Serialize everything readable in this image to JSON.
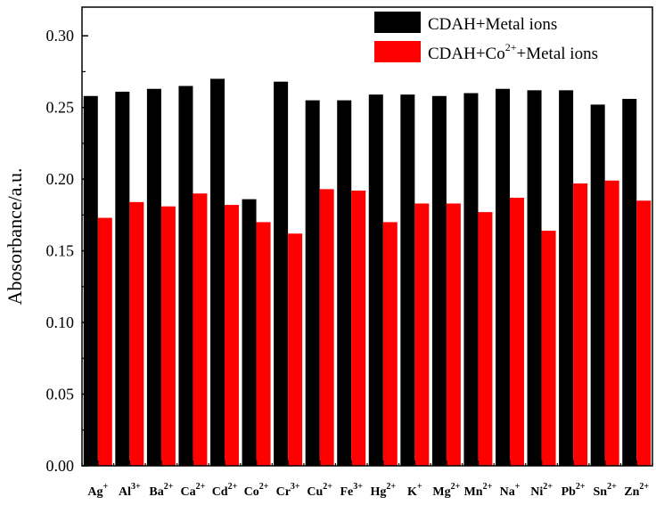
{
  "chart_data": {
    "type": "bar",
    "title": "",
    "xlabel": "",
    "ylabel": "Abosorbance/a.u.",
    "ylim": [
      0,
      0.32
    ],
    "yticks": [
      "0.00",
      "0.05",
      "0.10",
      "0.15",
      "0.20",
      "0.25",
      "0.30"
    ],
    "ytick_values": [
      0,
      0.05,
      0.1,
      0.15,
      0.2,
      0.25,
      0.3
    ],
    "legend_position": "top-right",
    "categories": [
      {
        "base": "Ag",
        "sup": "+"
      },
      {
        "base": "Al",
        "sup": "3+"
      },
      {
        "base": "Ba",
        "sup": "2+"
      },
      {
        "base": "Ca",
        "sup": "2+"
      },
      {
        "base": "Cd",
        "sup": "2+"
      },
      {
        "base": "Co",
        "sup": "2+"
      },
      {
        "base": "Cr",
        "sup": "3+"
      },
      {
        "base": "Cu",
        "sup": "2+"
      },
      {
        "base": "Fe",
        "sup": "3+"
      },
      {
        "base": "Hg",
        "sup": "2+"
      },
      {
        "base": "K",
        "sup": "+"
      },
      {
        "base": "Mg",
        "sup": "2+"
      },
      {
        "base": "Mn",
        "sup": "2+"
      },
      {
        "base": "Na",
        "sup": "+"
      },
      {
        "base": "Ni",
        "sup": "2+"
      },
      {
        "base": "Pb",
        "sup": "2+"
      },
      {
        "base": "Sn",
        "sup": "2+"
      },
      {
        "base": "Zn",
        "sup": "2+"
      }
    ],
    "series": [
      {
        "name": "CDAH+Metal ions",
        "legend_parts": [
          "CDAH+Metal ions",
          "",
          ""
        ],
        "color": "#000000",
        "values": [
          0.258,
          0.261,
          0.263,
          0.265,
          0.27,
          0.186,
          0.268,
          0.255,
          0.255,
          0.259,
          0.259,
          0.258,
          0.26,
          0.263,
          0.262,
          0.262,
          0.252,
          0.256
        ]
      },
      {
        "name": "CDAH+Co2++Metal ions",
        "legend_parts": [
          "CDAH+Co",
          "2+",
          "+Metal ions"
        ],
        "color": "#ff0000",
        "values": [
          0.173,
          0.184,
          0.181,
          0.19,
          0.182,
          0.17,
          0.162,
          0.193,
          0.192,
          0.17,
          0.183,
          0.183,
          0.177,
          0.187,
          0.164,
          0.197,
          0.199,
          0.185
        ]
      }
    ]
  }
}
